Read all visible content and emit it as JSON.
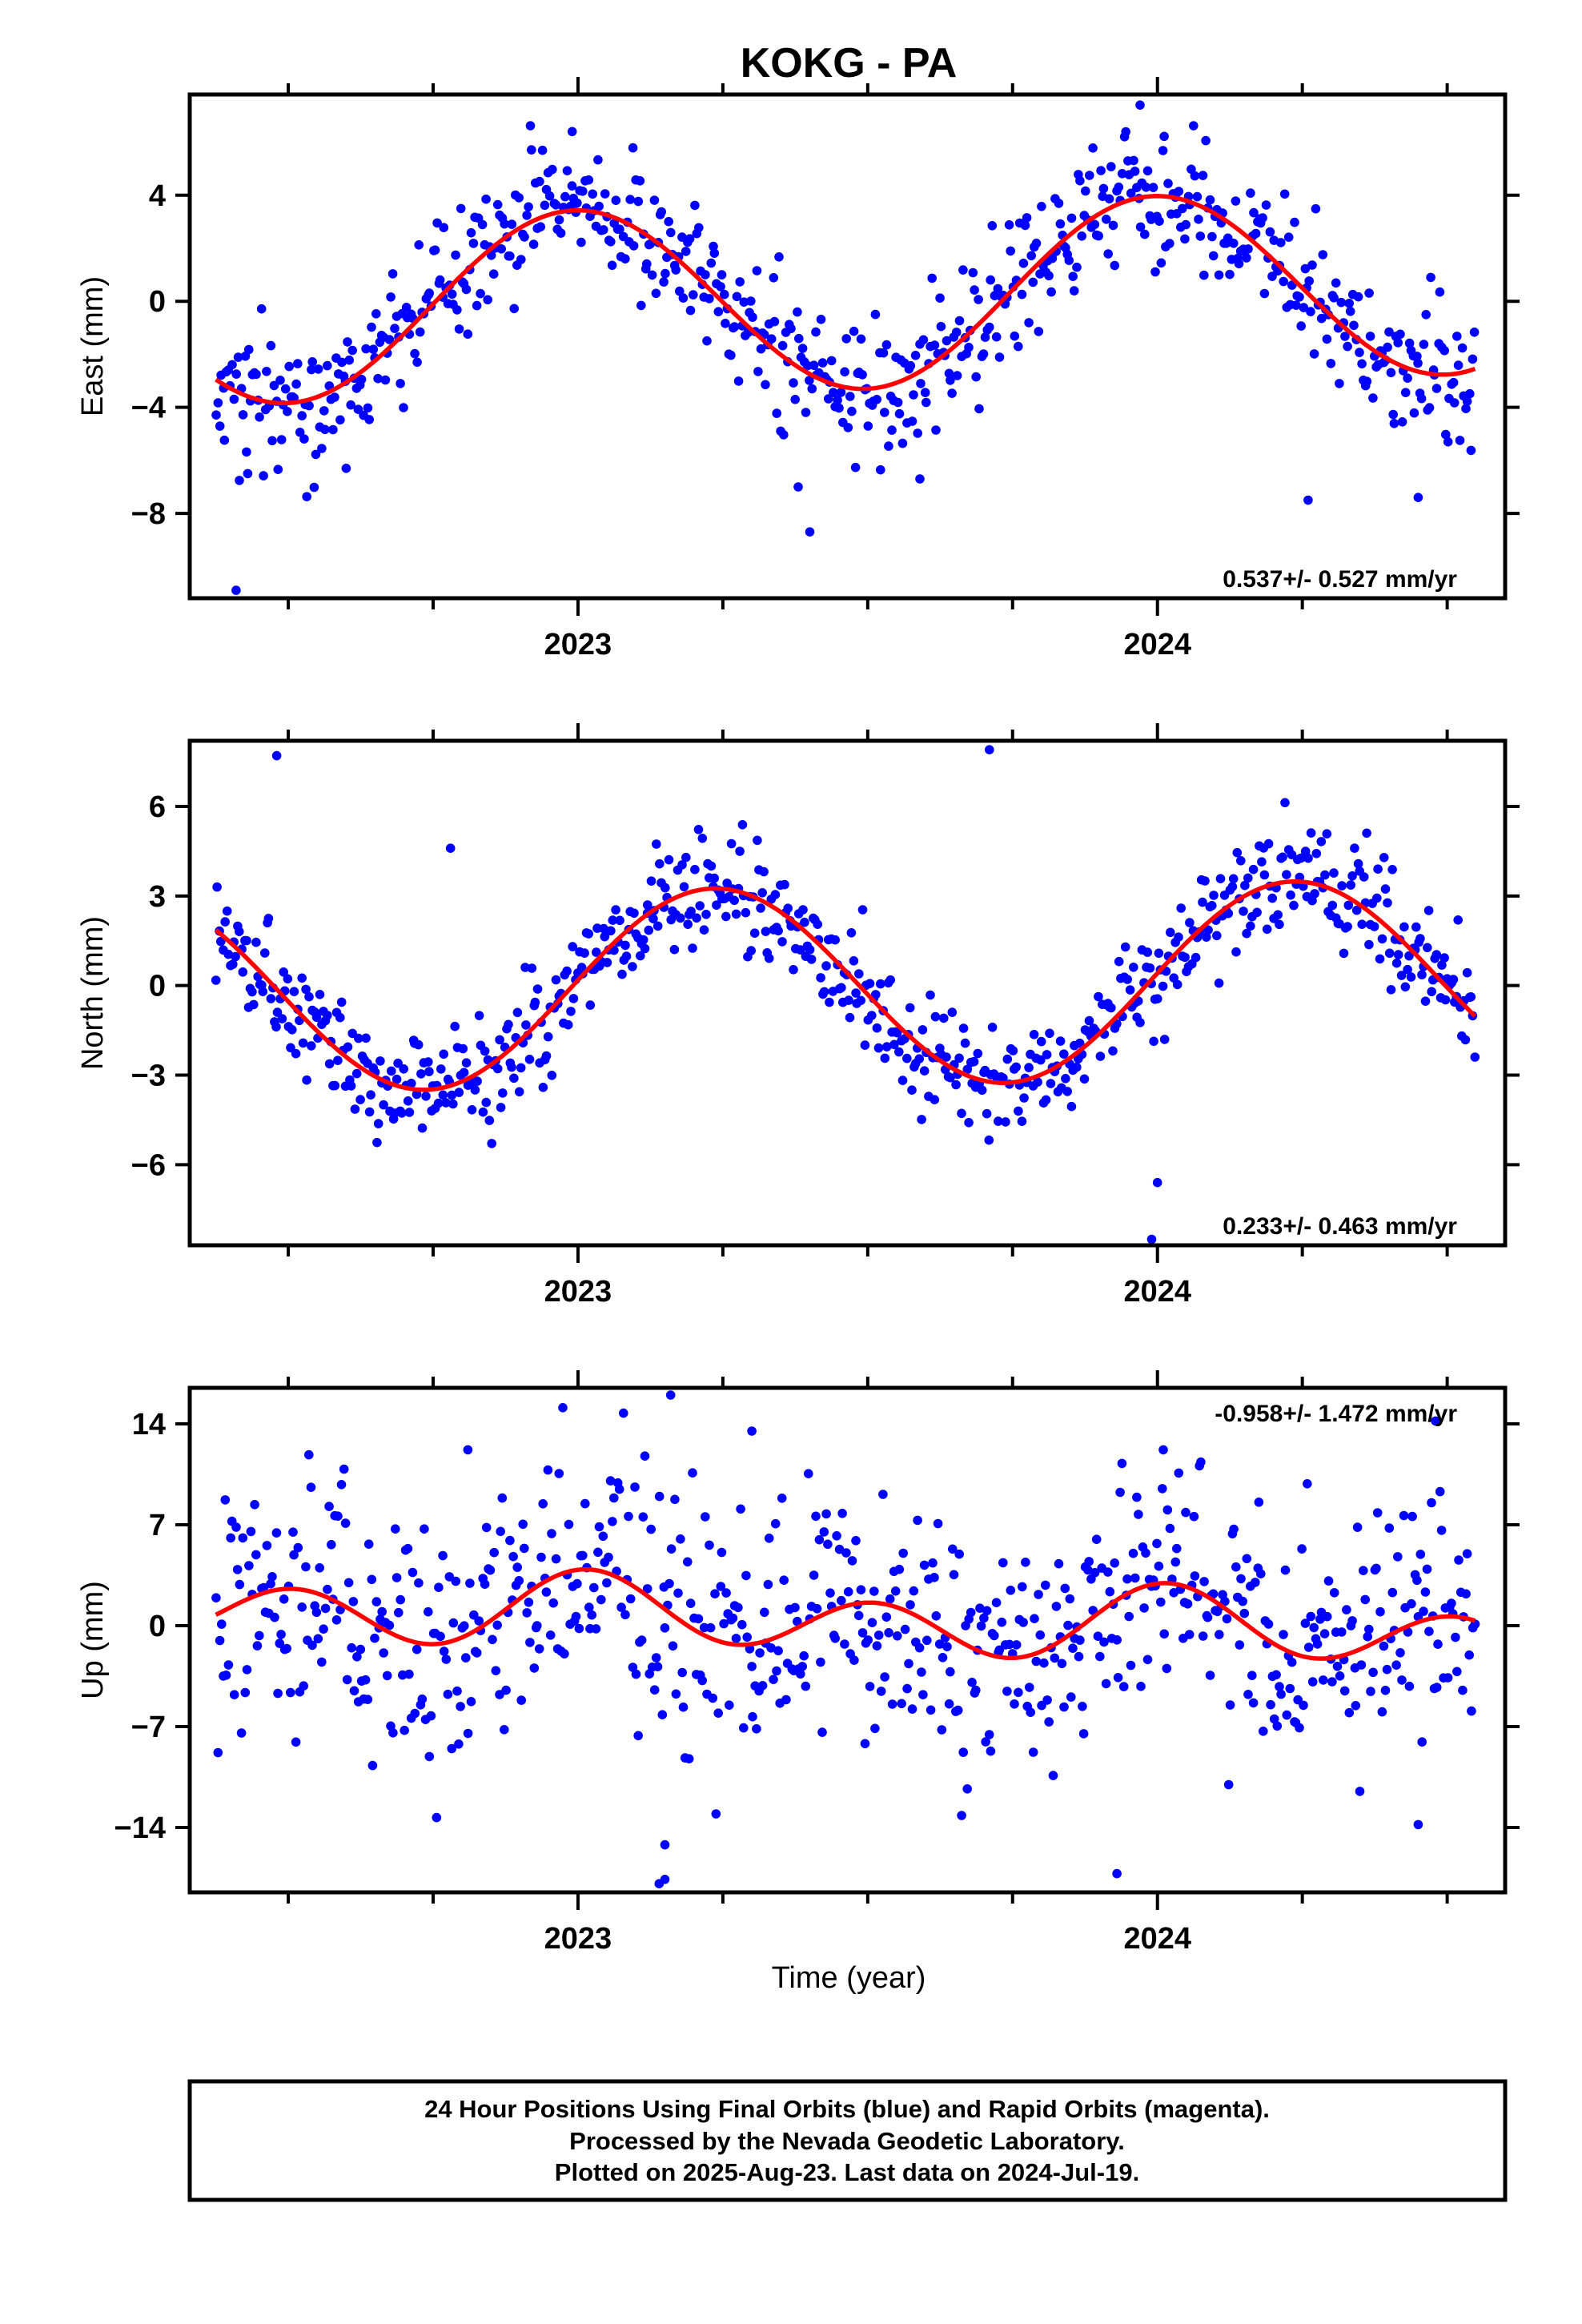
{
  "title": "KOKG - PA",
  "xlabel": "Time (year)",
  "footer": {
    "line1": "24 Hour Positions Using Final Orbits (blue) and Rapid Orbits (magenta).",
    "line2": "Processed by the Nevada Geodetic Laboratory.",
    "line3": "Plotted on 2025-Aug-23. Last data on 2024-Jul-19."
  },
  "colors": {
    "points": "#0000ff",
    "fit": "#ff0000",
    "frame": "#000000"
  },
  "chart_data": [
    {
      "type": "scatter",
      "ylabel": "East (mm)",
      "velocity": "0.537+/- 0.527 mm/yr",
      "velocity_position": "bottom-right",
      "xlim": [
        2022.33,
        2024.6
      ],
      "ylim": [
        -11.2,
        7.8
      ],
      "yticks": [
        4,
        0,
        -4,
        -8
      ],
      "ytick_labels": [
        "4",
        "0",
        "−4",
        "−8"
      ],
      "xticks": [
        2023,
        2024
      ],
      "xtick_labels": [
        "2023",
        "2024"
      ],
      "minor_xticks": [
        2022.5,
        2022.75,
        2023.25,
        2023.5,
        2023.75,
        2024.25,
        2024.5
      ],
      "data_start": 2022.375,
      "data_end": 2024.548,
      "point_count": 690,
      "noise_sd": 1.3,
      "fit": {
        "offset": 0.2,
        "rate": 0.537,
        "annual_sin": -0.1,
        "annual_cos": 3.5,
        "semi_sin": 0,
        "semi_cos": 0
      },
      "outliers": [
        {
          "x": 2022.41,
          "y": -10.9
        },
        {
          "x": 2023.4,
          "y": -8.7
        },
        {
          "x": 2023.59,
          "y": -6.7
        },
        {
          "x": 2023.38,
          "y": -7.0
        },
        {
          "x": 2024.26,
          "y": -7.5
        },
        {
          "x": 2024.45,
          "y": -7.4
        },
        {
          "x": 2023.97,
          "y": 7.4
        },
        {
          "x": 2022.43,
          "y": -6.5
        },
        {
          "x": 2022.6,
          "y": -6.3
        },
        {
          "x": 2022.99,
          "y": 6.4
        }
      ]
    },
    {
      "type": "scatter",
      "ylabel": "North (mm)",
      "velocity": "0.233+/- 0.463 mm/yr",
      "velocity_position": "bottom-right",
      "xlim": [
        2022.33,
        2024.6
      ],
      "ylim": [
        -8.7,
        8.2
      ],
      "yticks": [
        6,
        3,
        0,
        -3,
        -6
      ],
      "ytick_labels": [
        "6",
        "3",
        "0",
        "−3",
        "−6"
      ],
      "xticks": [
        2023,
        2024
      ],
      "xtick_labels": [
        "2023",
        "2024"
      ],
      "minor_xticks": [
        2022.5,
        2022.75,
        2023.25,
        2023.5,
        2023.75,
        2024.25,
        2024.5
      ],
      "data_start": 2022.375,
      "data_end": 2024.548,
      "point_count": 690,
      "noise_sd": 0.95,
      "fit": {
        "offset": 0.0,
        "rate": 0.233,
        "annual_sin": 3.3,
        "annual_cos": 0.3,
        "semi_sin": 0,
        "semi_cos": 0
      },
      "outliers": [
        {
          "x": 2022.48,
          "y": 7.7
        },
        {
          "x": 2023.71,
          "y": 7.9
        },
        {
          "x": 2024.0,
          "y": -6.6
        },
        {
          "x": 2023.99,
          "y": -8.5
        },
        {
          "x": 2022.78,
          "y": 4.6
        },
        {
          "x": 2023.12,
          "y": 2.7
        }
      ]
    },
    {
      "type": "scatter",
      "ylabel": "Up (mm)",
      "velocity": "-0.958+/- 1.472 mm/yr",
      "velocity_position": "top-right",
      "xlim": [
        2022.33,
        2024.6
      ],
      "ylim": [
        -18.5,
        16.5
      ],
      "yticks": [
        14,
        7,
        0,
        -7,
        -14
      ],
      "ytick_labels": [
        "14",
        "7",
        "0",
        "−7",
        "−14"
      ],
      "xticks": [
        2023,
        2024
      ],
      "xtick_labels": [
        "2023",
        "2024"
      ],
      "minor_xticks": [
        2022.5,
        2022.75,
        2023.25,
        2023.5,
        2023.75,
        2024.25,
        2024.5
      ],
      "data_start": 2022.375,
      "data_end": 2024.548,
      "point_count": 690,
      "noise_sd": 4.3,
      "fit": {
        "offset": 0.4,
        "rate": -0.958,
        "annual_sin": 0.3,
        "annual_cos": 0.9,
        "semi_sin": 0.3,
        "semi_cos": 2.1
      },
      "outliers": [
        {
          "x": 2023.16,
          "y": 16.0
        },
        {
          "x": 2023.15,
          "y": -17.6
        },
        {
          "x": 2023.14,
          "y": -17.9
        },
        {
          "x": 2023.93,
          "y": -17.2
        },
        {
          "x": 2024.48,
          "y": 14.2
        },
        {
          "x": 2023.15,
          "y": -15.2
        },
        {
          "x": 2023.3,
          "y": 13.5
        },
        {
          "x": 2024.01,
          "y": 12.2
        },
        {
          "x": 2022.81,
          "y": 12.2
        },
        {
          "x": 2024.45,
          "y": -13.8
        }
      ]
    }
  ]
}
